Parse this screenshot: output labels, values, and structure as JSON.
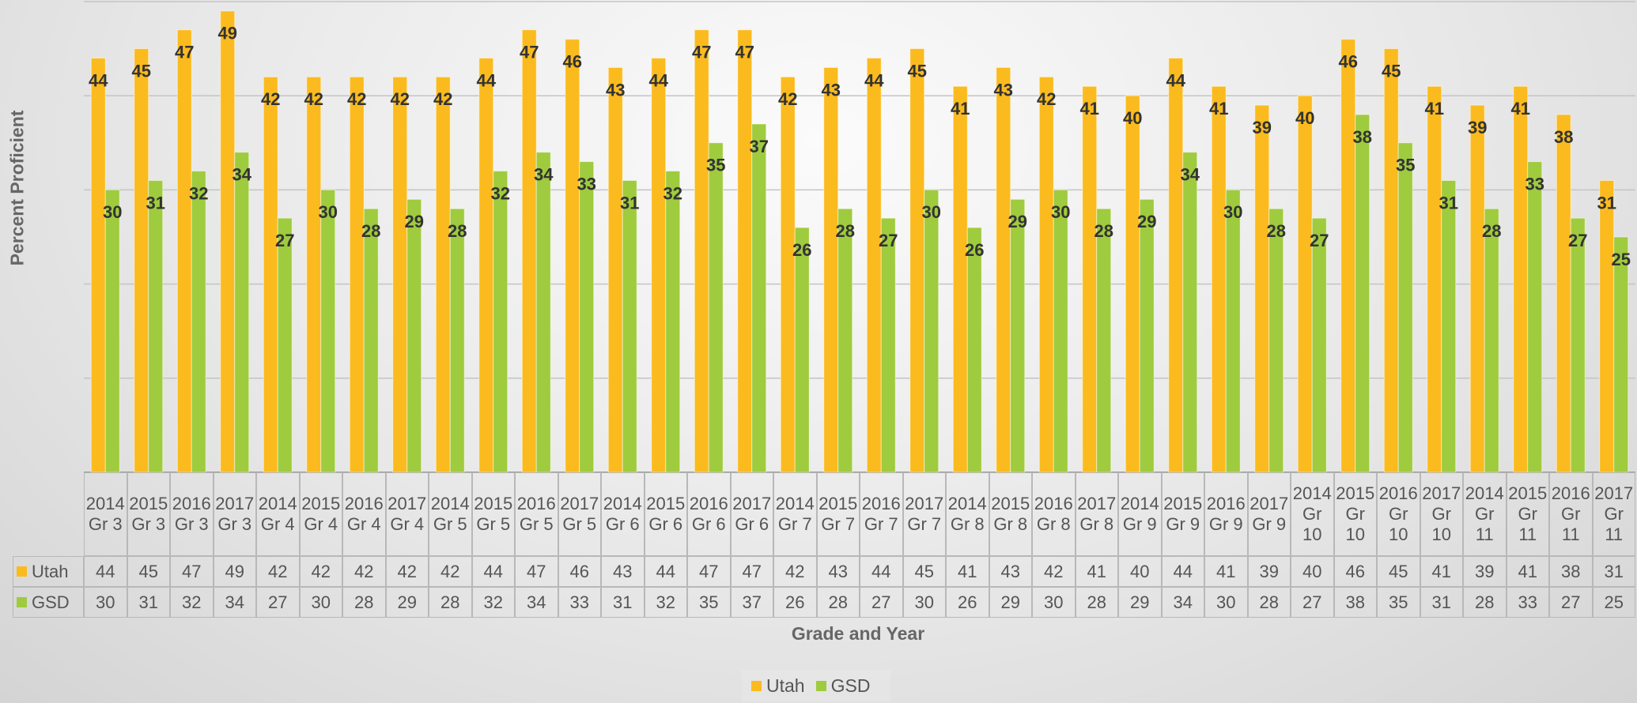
{
  "chart_data": {
    "type": "bar",
    "y_label": "Percent Proficient",
    "x_label": "Grade and Year",
    "categories": [
      "2014 Gr 3",
      "2015 Gr 3",
      "2016 Gr 3",
      "2017 Gr 3",
      "2014 Gr 4",
      "2015 Gr 4",
      "2016 Gr 4",
      "2017 Gr 4",
      "2014 Gr 5",
      "2015 Gr 5",
      "2016 Gr 5",
      "2017 Gr 5",
      "2014 Gr 6",
      "2015 Gr 6",
      "2016 Gr 6",
      "2017 Gr 6",
      "2014 Gr 7",
      "2015 Gr 7",
      "2016 Gr 7",
      "2017 Gr 7",
      "2014 Gr 8",
      "2015 Gr 8",
      "2016 Gr 8",
      "2017 Gr 8",
      "2014 Gr 9",
      "2015 Gr 9",
      "2016 Gr 9",
      "2017 Gr 9",
      "2014 Gr 10",
      "2015 Gr 10",
      "2016 Gr 10",
      "2017 Gr 10",
      "2014 Gr 11",
      "2015 Gr 11",
      "2016 Gr 11",
      "2017 Gr 11"
    ],
    "series": [
      {
        "name": "Utah",
        "color": "#fbbb1e",
        "values": [
          44,
          45,
          47,
          49,
          42,
          42,
          42,
          42,
          42,
          44,
          47,
          46,
          43,
          44,
          47,
          47,
          42,
          43,
          44,
          45,
          41,
          43,
          42,
          41,
          40,
          44,
          41,
          39,
          40,
          46,
          45,
          41,
          39,
          41,
          38,
          31
        ]
      },
      {
        "name": "GSD",
        "color": "#9fcb3e",
        "values": [
          30,
          31,
          32,
          34,
          27,
          30,
          28,
          29,
          28,
          32,
          34,
          33,
          31,
          32,
          35,
          37,
          26,
          28,
          27,
          30,
          26,
          29,
          30,
          28,
          29,
          34,
          30,
          28,
          27,
          38,
          35,
          31,
          28,
          33,
          27,
          25
        ]
      }
    ],
    "ylim": [
      0,
      50
    ],
    "yticks": [
      0,
      10,
      20,
      30,
      40,
      50
    ],
    "grid": true,
    "legend": "bottom"
  }
}
